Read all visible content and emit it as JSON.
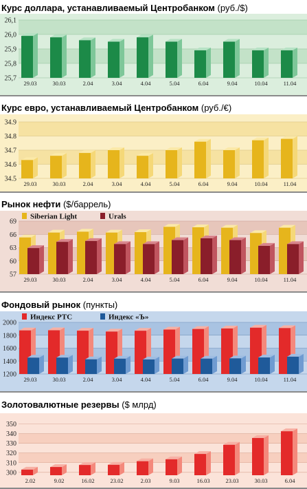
{
  "panels": [
    {
      "title_bold": "Курс доллара, устанавливаемый Центробанком",
      "title_unit": " (руб./$)",
      "colors": {
        "bg": "#dbeedd",
        "band": "#c3e2c8",
        "grid": "#8fbf98",
        "front": "#1c8a48",
        "side": "#7ec799",
        "top": "#b6e2c4"
      },
      "chart_data": {
        "type": "bar",
        "categories": [
          "29.03",
          "30.03",
          "2.04",
          "3.04",
          "4.04",
          "5.04",
          "6.04",
          "9.04",
          "10.04",
          "11.04"
        ],
        "series": [
          {
            "values": [
              25.99,
              25.98,
              25.96,
              25.95,
              25.98,
              25.95,
              25.89,
              25.95,
              25.89,
              25.89
            ]
          }
        ],
        "yticks": [
          "25,7",
          "25,8",
          "25,9",
          "26,0",
          "26,1"
        ],
        "ylim": [
          25.7,
          26.1
        ]
      }
    },
    {
      "title_bold": "Курс евро, устанавливаемый Центробанком",
      "title_unit": " (руб./€)",
      "colors": {
        "bg": "#fbefc6",
        "band": "#f6e2a2",
        "grid": "#d4be78",
        "front": "#e6b51c",
        "side": "#f5d878",
        "top": "#fbe9a8"
      },
      "chart_data": {
        "type": "bar",
        "categories": [
          "29.03",
          "30.03",
          "2.04",
          "3.04",
          "4.04",
          "5.04",
          "6.04",
          "9.04",
          "10.04",
          "11.04"
        ],
        "series": [
          {
            "values": [
              34.63,
              34.66,
              34.68,
              34.7,
              34.66,
              34.7,
              34.76,
              34.7,
              34.77,
              34.78
            ]
          }
        ],
        "yticks": [
          "34.5",
          "34.6",
          "34.7",
          "34.8",
          "34.9"
        ],
        "ylim": [
          34.5,
          34.9
        ]
      }
    },
    {
      "title_bold": "Рынок нефти",
      "title_unit": " ($/баррель)",
      "colors": {
        "bg": "#f1ddd6",
        "band": "#e7c6bb",
        "grid": "#c79a8d",
        "front": "#e6b51c",
        "side": "#f5d878",
        "top": "#fbe9a8",
        "front2": "#8a1e2a",
        "side2": "#c0555f",
        "top2": "#d8858c"
      },
      "legend": [
        {
          "name": "Siberian Light",
          "color": "#e6b51c"
        },
        {
          "name": "Urals",
          "color": "#8a1e2a"
        }
      ],
      "chart_data": {
        "type": "bar",
        "categories": [
          "29.03",
          "30.03",
          "2.04",
          "3.04",
          "4.04",
          "5.04",
          "6.04",
          "9.04",
          "10.04",
          "11.04"
        ],
        "series": [
          {
            "name": "Siberian Light",
            "values": [
              65.3,
              66.4,
              66.6,
              66.4,
              66.5,
              67.7,
              67.6,
              67.5,
              66.3,
              67.5
            ]
          },
          {
            "name": "Urals",
            "values": [
              62.9,
              64.3,
              64.5,
              63.8,
              63.8,
              64.7,
              65.1,
              64.7,
              63.4,
              63.8
            ]
          }
        ],
        "yticks": [
          "57",
          "60",
          "63",
          "66",
          "69"
        ],
        "ylim": [
          57,
          69
        ]
      }
    },
    {
      "title_bold": "Фондовый рынок",
      "title_unit": " (пункты)",
      "colors": {
        "bg": "#c5d7ec",
        "band": "#a9c3e2",
        "grid": "#6f8fb7",
        "front": "#e32a2a",
        "side": "#f4897c",
        "top": "#f7b0a4",
        "front2": "#1f5a9a",
        "side2": "#6f9bd1",
        "top2": "#9ebde2"
      },
      "legend": [
        {
          "name": "Индекс РТС",
          "color": "#e32a2a"
        },
        {
          "name": "Индекс «Ъ»",
          "color": "#1f5a9a"
        }
      ],
      "chart_data": {
        "type": "bar",
        "categories": [
          "29.03",
          "30.03",
          "2.04",
          "3.04",
          "4.04",
          "5.04",
          "6.04",
          "9.04",
          "10.04",
          "11.04"
        ],
        "series": [
          {
            "name": "Индекс РТС",
            "values": [
              1875,
              1877,
              1871,
              1857,
              1870,
              1888,
              1897,
              1905,
              1917,
              1911
            ]
          },
          {
            "name": "Индекс «Ъ»",
            "values": [
              1453,
              1454,
              1427,
              1437,
              1425,
              1439,
              1438,
              1442,
              1456,
              1468
            ]
          }
        ],
        "yticks": [
          "1200",
          "1400",
          "1600",
          "1800",
          "2000"
        ],
        "ylim": [
          1200,
          2000
        ]
      }
    },
    {
      "title_bold": "Золотовалютные резервы",
      "title_unit": " ($ млрд)",
      "colors": {
        "bg": "#fbe3d9",
        "band": "#f7cfbf",
        "grid": "#d9a693",
        "front": "#e32a2a",
        "side": "#f4897c",
        "top": "#f7b0a4"
      },
      "chart_data": {
        "type": "bar",
        "categories": [
          "2.02",
          "9.02",
          "16.02",
          "23.02",
          "2.03",
          "9.03",
          "16.03",
          "23.03",
          "30.03",
          "6.04"
        ],
        "series": [
          {
            "values": [
              302.8,
              305.5,
              307.6,
              307.8,
              311.5,
              313.5,
              319.0,
              328.5,
              335.5,
              342.5
            ]
          }
        ],
        "yticks": [
          "300",
          "310",
          "320",
          "330",
          "340",
          "350"
        ],
        "ylim": [
          297,
          354
        ]
      }
    }
  ]
}
